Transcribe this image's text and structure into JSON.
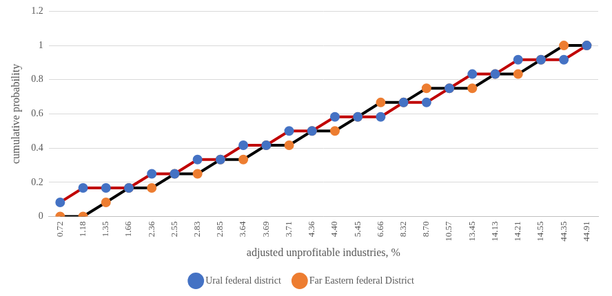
{
  "chart_data": {
    "type": "line",
    "x_label": "adjusted unprofitable industries, %",
    "y_label": "cumulative probability",
    "categories": [
      "0.72",
      "1.18",
      "1.35",
      "1.66",
      "2.36",
      "2.55",
      "2.83",
      "2.85",
      "3.64",
      "3.69",
      "3.71",
      "4.36",
      "4.40",
      "5.45",
      "6.66",
      "8.32",
      "8.70",
      "10.57",
      "13.45",
      "14.13",
      "14.21",
      "14.55",
      "44.35",
      "44.91"
    ],
    "series": [
      {
        "name": "Ural federal district",
        "color": "#c00000",
        "marker": "circle",
        "values": [
          0.083,
          0.167,
          0.167,
          0.167,
          0.25,
          0.25,
          0.333,
          0.333,
          0.417,
          0.417,
          0.5,
          0.5,
          0.583,
          0.583,
          0.583,
          0.667,
          0.667,
          0.75,
          0.833,
          0.833,
          0.917,
          0.917,
          0.917,
          1
        ]
      },
      {
        "name": "Far Eastern federal District",
        "color": "#000000",
        "marker": "circle",
        "values": [
          0,
          0,
          0.083,
          0.167,
          0.167,
          0.25,
          0.25,
          0.333,
          0.333,
          0.417,
          0.417,
          0.5,
          0.5,
          0.583,
          0.667,
          0.667,
          0.75,
          0.75,
          0.75,
          0.833,
          0.833,
          0.917,
          1,
          1
        ]
      }
    ],
    "ylim": [
      0,
      1.2
    ],
    "yticks": [
      0,
      0.2,
      0.4,
      0.6,
      0.8,
      1,
      1.2
    ],
    "grid": true,
    "legend": "bottom"
  }
}
